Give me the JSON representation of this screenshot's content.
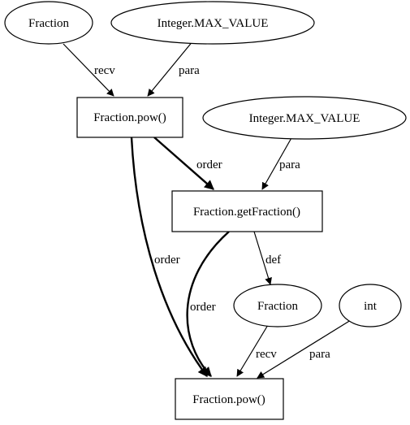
{
  "nodes": {
    "n_fraction_top": {
      "label": "Fraction",
      "shape": "ellipse"
    },
    "n_maxvalue_top": {
      "label": "Integer.MAX_VALUE",
      "shape": "ellipse"
    },
    "n_pow_1": {
      "label": "Fraction.pow()",
      "shape": "box"
    },
    "n_maxvalue_mid": {
      "label": "Integer.MAX_VALUE",
      "shape": "ellipse"
    },
    "n_getfraction": {
      "label": "Fraction.getFraction()",
      "shape": "box"
    },
    "n_fraction_mid": {
      "label": "Fraction",
      "shape": "ellipse"
    },
    "n_int": {
      "label": "int",
      "shape": "ellipse"
    },
    "n_pow_2": {
      "label": "Fraction.pow()",
      "shape": "box"
    }
  },
  "edges": [
    {
      "from": "n_fraction_top",
      "to": "n_pow_1",
      "label": "recv",
      "bold": false
    },
    {
      "from": "n_maxvalue_top",
      "to": "n_pow_1",
      "label": "para",
      "bold": false
    },
    {
      "from": "n_pow_1",
      "to": "n_getfraction",
      "label": "order",
      "bold": true
    },
    {
      "from": "n_maxvalue_mid",
      "to": "n_getfraction",
      "label": "para",
      "bold": false
    },
    {
      "from": "n_pow_1",
      "to": "n_pow_2",
      "label": "order",
      "bold": true
    },
    {
      "from": "n_getfraction",
      "to": "n_fraction_mid",
      "label": "def",
      "bold": false
    },
    {
      "from": "n_getfraction",
      "to": "n_pow_2",
      "label": "order",
      "bold": true
    },
    {
      "from": "n_fraction_mid",
      "to": "n_pow_2",
      "label": "recv",
      "bold": false
    },
    {
      "from": "n_int",
      "to": "n_pow_2",
      "label": "para",
      "bold": false
    }
  ]
}
